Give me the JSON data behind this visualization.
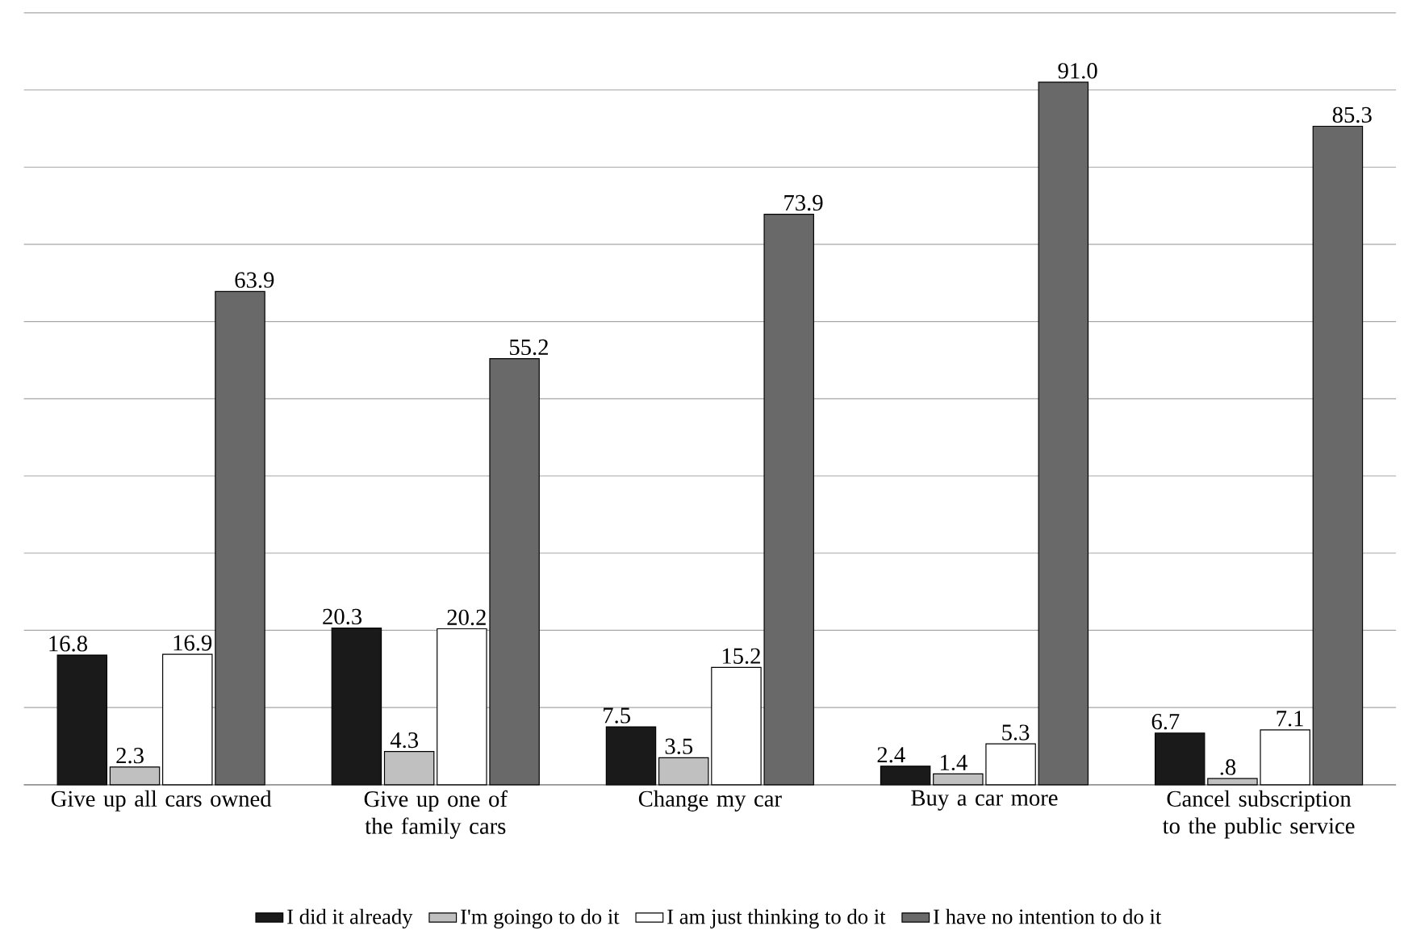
{
  "chart_data": {
    "type": "bar",
    "categories": [
      "Give up all cars owned",
      "Give up one of the family cars",
      "Change my car",
      "Buy a car more",
      "Cancel subscription to the public service"
    ],
    "series": [
      {
        "name": "I did it already",
        "color": "#1a1a1a",
        "values": [
          16.8,
          20.3,
          7.5,
          2.4,
          6.7
        ],
        "value_labels": [
          "16.8",
          "20.3",
          "7.5",
          "2.4",
          "6.7"
        ]
      },
      {
        "name": "I'm goingo to do it",
        "color": "#c0c0c0",
        "values": [
          2.3,
          4.3,
          3.5,
          1.4,
          0.8
        ],
        "value_labels": [
          "2.3",
          "4.3",
          "3.5",
          "1.4",
          ".8"
        ]
      },
      {
        "name": "I am just thinking to do it",
        "color": "#ffffff",
        "values": [
          16.9,
          20.2,
          15.2,
          5.3,
          7.1
        ],
        "value_labels": [
          "16.9",
          "20.2",
          "15.2",
          "5.3",
          "7.1"
        ]
      },
      {
        "name": "I have no intention to do it",
        "color": "#696969",
        "values": [
          63.9,
          55.2,
          73.9,
          91.0,
          85.3
        ],
        "value_labels": [
          "63.9",
          "55.2",
          "73.9",
          "91.0",
          "85.3"
        ]
      }
    ],
    "ylim": [
      0,
      100
    ],
    "yticks": [
      {
        "value": 0,
        "label": null
      },
      {
        "value": 10,
        "label": null
      },
      {
        "value": 20,
        "label": null
      },
      {
        "value": 30,
        "label": null
      },
      {
        "value": 40,
        "label": null
      },
      {
        "value": 50,
        "label": null
      },
      {
        "value": 60,
        "label": null
      },
      {
        "value": 70,
        "label": null
      },
      {
        "value": 80,
        "label": null
      },
      {
        "value": 90,
        "label": null
      },
      {
        "value": 100,
        "label": null
      }
    ],
    "tick_labels": "x",
    "grid": "y",
    "legend": "bottom"
  }
}
